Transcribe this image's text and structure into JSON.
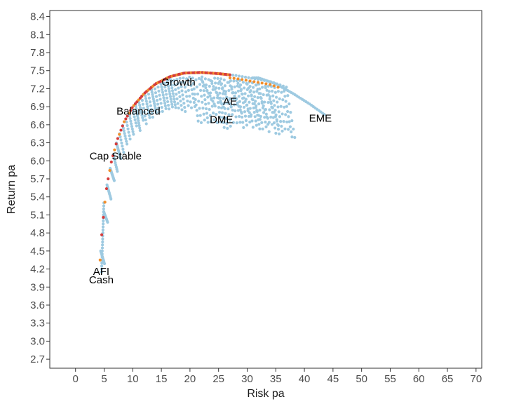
{
  "chart_data": {
    "type": "scatter",
    "xlabel": "Risk pa",
    "ylabel": "Return pa",
    "xlim": [
      -4.5,
      71
    ],
    "ylim": [
      2.55,
      8.5
    ],
    "x_ticks": [
      0,
      5,
      10,
      15,
      20,
      25,
      30,
      35,
      40,
      45,
      50,
      55,
      60,
      65,
      70
    ],
    "y_ticks": [
      2.7,
      3.0,
      3.3,
      3.6,
      3.9,
      4.2,
      4.5,
      4.8,
      5.1,
      5.4,
      5.7,
      6.0,
      6.3,
      6.6,
      6.9,
      7.2,
      7.5,
      7.8,
      8.1,
      8.4
    ],
    "grid": false,
    "legend": "none",
    "colors": {
      "portfolios": "#9ecae1",
      "frontier_red": "#d63c3c",
      "frontier_orange": "#f28e2b",
      "axis": "#333333"
    },
    "asset_labels": [
      {
        "label": "AFI",
        "x": 4.5,
        "y": 4.1
      },
      {
        "label": "Cash",
        "x": 4.5,
        "y": 3.96
      },
      {
        "label": "Cap Stable",
        "x": 7.0,
        "y": 6.02
      },
      {
        "label": "Balanced",
        "x": 11.0,
        "y": 6.77
      },
      {
        "label": "Growth",
        "x": 18.0,
        "y": 7.25
      },
      {
        "label": "AE",
        "x": 27.0,
        "y": 6.93
      },
      {
        "label": "DME",
        "x": 25.5,
        "y": 6.63
      },
      {
        "label": "EME",
        "x": 42.8,
        "y": 6.65
      }
    ],
    "frontier_curve": {
      "x": [
        4.3,
        4.6,
        5.0,
        5.5,
        6.3,
        7.3,
        8.5,
        10.0,
        12.0,
        14.0,
        16.5,
        19.0,
        22.0,
        25.0,
        28.0,
        31.0,
        34.0,
        37.0
      ],
      "y": [
        4.35,
        4.8,
        5.2,
        5.6,
        6.0,
        6.35,
        6.65,
        6.9,
        7.12,
        7.28,
        7.4,
        7.46,
        7.47,
        7.45,
        7.42,
        7.37,
        7.32,
        7.22
      ]
    },
    "outer_curve": {
      "x": [
        32.0,
        35.0,
        38.0,
        41.0,
        43.5
      ],
      "y": [
        7.38,
        7.28,
        7.12,
        6.94,
        6.77
      ]
    }
  }
}
